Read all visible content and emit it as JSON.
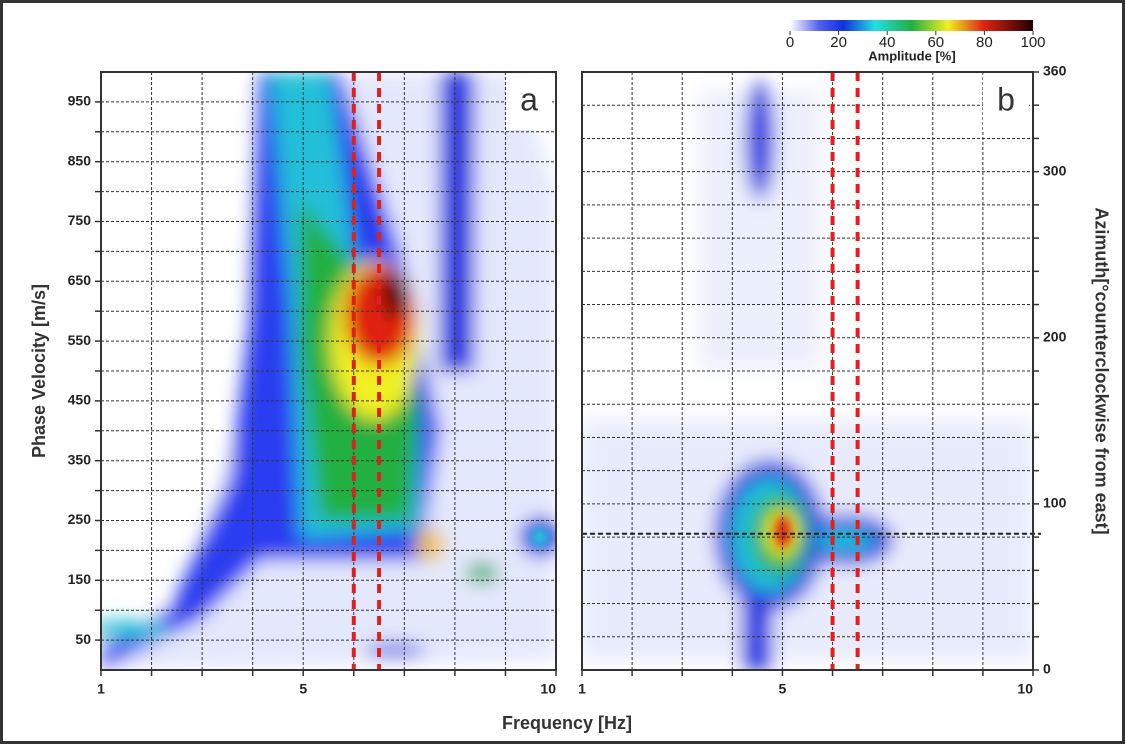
{
  "x_label": "Frequency [Hz]",
  "colorbar": {
    "label": "Amplitude [%]",
    "range": [
      0,
      100
    ],
    "ticks": [
      0,
      20,
      40,
      60,
      80,
      100
    ]
  },
  "chart_data": [
    {
      "type": "heatmap",
      "panel_label": "a",
      "ylabel": "Phase Velocity [m/s]",
      "xlim": [
        1,
        10
      ],
      "xticks": [
        1,
        5,
        10
      ],
      "xminorticks": [
        2,
        3,
        4,
        6,
        7,
        8,
        9
      ],
      "ylim": [
        0,
        1000
      ],
      "yticks": [
        50,
        150,
        250,
        350,
        450,
        550,
        650,
        750,
        850,
        950
      ],
      "yminorticks": [
        100,
        200,
        300,
        400,
        500,
        600,
        700,
        800,
        900
      ],
      "reference_frequencies": [
        6,
        6.5
      ]
    },
    {
      "type": "heatmap",
      "panel_label": "b",
      "ylabel": "Azimuth[°counterclockwise from east]",
      "xlim": [
        1,
        10
      ],
      "xticks": [
        1,
        5,
        10
      ],
      "xminorticks": [
        2,
        3,
        4,
        6,
        7,
        8,
        9
      ],
      "ylim": [
        0,
        360
      ],
      "yticks": [
        0,
        100,
        200,
        300,
        360
      ],
      "yminorticks": [
        20,
        40,
        60,
        80,
        120,
        140,
        160,
        180,
        220,
        240,
        260,
        280,
        320,
        340
      ],
      "reference_frequencies": [
        6,
        6.5
      ],
      "reference_azimuth": 82
    }
  ]
}
